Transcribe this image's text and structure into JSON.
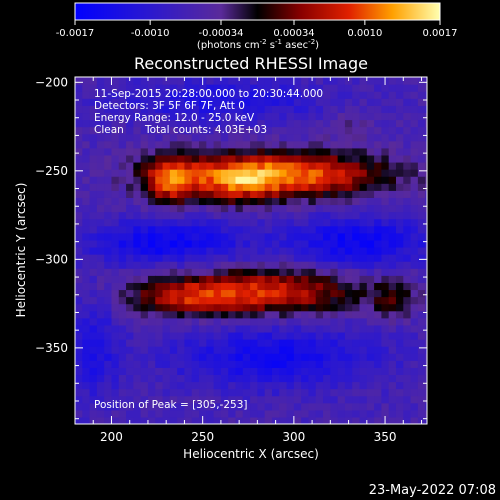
{
  "chart_data": {
    "type": "heatmap",
    "title": "Reconstructed RHESSI Image",
    "xlabel": "Heliocentric X (arcsec)",
    "ylabel": "Heliocentric Y (arcsec)",
    "xlim": [
      180,
      373
    ],
    "ylim": [
      -393,
      -197
    ],
    "xticks": [
      200,
      250,
      300,
      350
    ],
    "yticks": [
      -200,
      -250,
      -300,
      -350
    ],
    "colorbar": {
      "min": -0.0017,
      "max": 0.0017,
      "ticks": [
        "-0.0017",
        "-0.0010",
        "-0.00034",
        "0.00034",
        "0.0010",
        "0.0017"
      ],
      "tick_values": [
        -0.0017,
        -0.001,
        -0.00034,
        0.00034,
        0.001,
        0.0017
      ],
      "unit_base": "(photons cm",
      "unit_exp1": "-2",
      "unit_mid1": " s",
      "unit_exp2": "-1",
      "unit_mid2": " asec",
      "unit_exp3": "-2",
      "unit_close": ")"
    },
    "annotations": {
      "time": "11-Sep-2015 20:28:00.000 to 20:30:44.000",
      "detectors": "Detectors: 3F 5F 6F 7F, Att 0",
      "energy": "Energy Range: 12.0 - 25.0 keV",
      "clean": "Clean",
      "counts": "Total counts: 4.03E+03",
      "peak": "Position of Peak = [305,-253]"
    },
    "peak": [
      305,
      -253
    ],
    "sources": [
      {
        "x": 290,
        "y": -252,
        "sx": 42,
        "sy": 9,
        "amp": 0.00185
      },
      {
        "x": 232,
        "y": -255,
        "sx": 10,
        "sy": 10,
        "amp": 0.0012
      },
      {
        "x": 268,
        "y": -258,
        "sx": 14,
        "sy": 8,
        "amp": 0.0006
      },
      {
        "x": 282,
        "y": -318,
        "sx": 38,
        "sy": 9,
        "amp": 0.00145
      },
      {
        "x": 238,
        "y": -322,
        "sx": 20,
        "sy": 7,
        "amp": 0.00075
      },
      {
        "x": 355,
        "y": -322,
        "sx": 8,
        "sy": 8,
        "amp": 0.0006
      },
      {
        "x": 330,
        "y": -222,
        "sx": 8,
        "sy": 7,
        "amp": 0.0003
      },
      {
        "x": 230,
        "y": -290,
        "sx": 30,
        "sy": 9,
        "amp": -0.0009
      },
      {
        "x": 335,
        "y": -290,
        "sx": 28,
        "sy": 10,
        "amp": -0.0009
      },
      {
        "x": 290,
        "y": -355,
        "sx": 40,
        "sy": 12,
        "amp": -0.0008
      },
      {
        "x": 260,
        "y": -210,
        "sx": 40,
        "sy": 8,
        "amp": -0.0006
      },
      {
        "x": 190,
        "y": -350,
        "sx": 10,
        "sy": 20,
        "amp": -0.0006
      }
    ]
  },
  "timestamp": "23-May-2022 07:08"
}
